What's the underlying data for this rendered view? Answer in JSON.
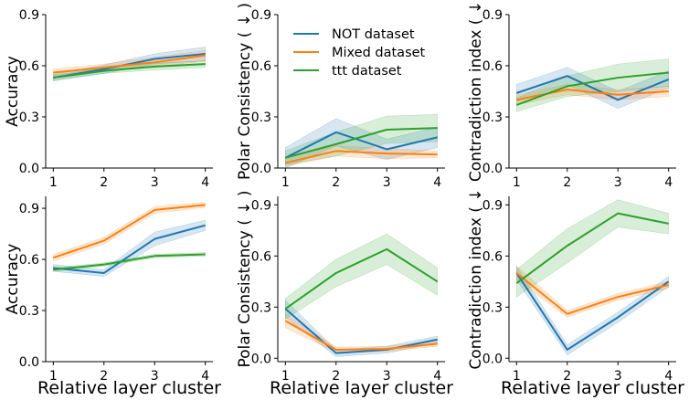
{
  "chart_data": {
    "type": "line",
    "legend": {
      "placement": "top-left of top-middle panel",
      "entries": [
        {
          "name": "NOT dataset",
          "color": "#1f77b4"
        },
        {
          "name": "Mixed dataset",
          "color": "#ff7f0e"
        },
        {
          "name": "ttt dataset",
          "color": "#2ca02c"
        }
      ]
    },
    "panels": [
      {
        "id": "top-accuracy",
        "ylabel": "Accuracy",
        "xlabel": "",
        "x": [
          1,
          2,
          3,
          4
        ],
        "xticks": [
          "1",
          "2",
          "3",
          "4"
        ],
        "ylim": [
          0,
          0.9
        ],
        "yticks": [
          "0.0",
          "0.3",
          "0.6",
          "0.9"
        ],
        "ytick_values": [
          0,
          0.3,
          0.6,
          0.9
        ],
        "series": [
          {
            "name": "NOT dataset",
            "values": [
              0.53,
              0.58,
              0.64,
              0.67
            ],
            "band": [
              0.02,
              0.025,
              0.03,
              0.04
            ]
          },
          {
            "name": "Mixed dataset",
            "values": [
              0.56,
              0.59,
              0.62,
              0.66
            ],
            "band": [
              0.02,
              0.02,
              0.03,
              0.03
            ]
          },
          {
            "name": "ttt dataset",
            "values": [
              0.53,
              0.57,
              0.595,
              0.61
            ],
            "band": [
              0.015,
              0.015,
              0.02,
              0.02
            ]
          }
        ]
      },
      {
        "id": "top-polar",
        "ylabel": "Polar Consistency ( ↓ )",
        "xlabel": "",
        "x": [
          1,
          2,
          3,
          4
        ],
        "xticks": [
          "1",
          "2",
          "3",
          "4"
        ],
        "ylim": [
          0,
          0.9
        ],
        "yticks": [
          "0.0",
          "0.3",
          "0.6",
          "0.9"
        ],
        "ytick_values": [
          0,
          0.3,
          0.6,
          0.9
        ],
        "series": [
          {
            "name": "NOT dataset",
            "values": [
              0.06,
              0.21,
              0.11,
              0.18
            ],
            "band": [
              0.06,
              0.08,
              0.06,
              0.06
            ]
          },
          {
            "name": "Mixed dataset",
            "values": [
              0.03,
              0.1,
              0.085,
              0.08
            ],
            "band": [
              0.02,
              0.03,
              0.03,
              0.02
            ]
          },
          {
            "name": "ttt dataset",
            "values": [
              0.06,
              0.14,
              0.225,
              0.235
            ],
            "band": [
              0.04,
              0.07,
              0.08,
              0.08
            ]
          }
        ]
      },
      {
        "id": "top-contradiction",
        "ylabel": "Contradiction index ( ↓",
        "xlabel": "",
        "x": [
          1,
          2,
          3,
          4
        ],
        "xticks": [
          "1",
          "2",
          "3",
          "4"
        ],
        "ylim": [
          0,
          0.9
        ],
        "yticks": [
          "0.0",
          "0.3",
          "0.6",
          "0.9"
        ],
        "ytick_values": [
          0,
          0.3,
          0.6,
          0.9
        ],
        "series": [
          {
            "name": "NOT dataset",
            "values": [
              0.44,
              0.54,
              0.4,
              0.52
            ],
            "band": [
              0.05,
              0.05,
              0.05,
              0.05
            ]
          },
          {
            "name": "Mixed dataset",
            "values": [
              0.4,
              0.46,
              0.43,
              0.45
            ],
            "band": [
              0.03,
              0.03,
              0.03,
              0.03
            ]
          },
          {
            "name": "ttt dataset",
            "values": [
              0.37,
              0.48,
              0.53,
              0.56
            ],
            "band": [
              0.04,
              0.06,
              0.08,
              0.08
            ]
          }
        ]
      },
      {
        "id": "bottom-accuracy",
        "ylabel": "Accuracy",
        "xlabel": "Relative layer cluster",
        "x": [
          1,
          2,
          3,
          4
        ],
        "xticks": [
          "1",
          "2",
          "3",
          "4"
        ],
        "ylim": [
          0,
          0.97
        ],
        "yticks": [
          "0.0",
          "0.3",
          "0.6",
          "0.9"
        ],
        "ytick_values": [
          0,
          0.3,
          0.6,
          0.9
        ],
        "series": [
          {
            "name": "NOT dataset",
            "values": [
              0.55,
              0.52,
              0.72,
              0.8
            ],
            "band": [
              0.02,
              0.02,
              0.04,
              0.03
            ]
          },
          {
            "name": "Mixed dataset",
            "values": [
              0.61,
              0.71,
              0.89,
              0.92
            ],
            "band": [
              0.02,
              0.02,
              0.02,
              0.015
            ]
          },
          {
            "name": "ttt dataset",
            "values": [
              0.54,
              0.57,
              0.62,
              0.63
            ],
            "band": [
              0.01,
              0.01,
              0.01,
              0.01
            ]
          }
        ]
      },
      {
        "id": "bottom-polar",
        "ylabel": "Polar Consistency ( ↓ )",
        "xlabel": "Relative layer cluster",
        "x": [
          1,
          2,
          3,
          4
        ],
        "xticks": [
          "1",
          "2",
          "3",
          "4"
        ],
        "ylim": [
          -0.02,
          0.95
        ],
        "yticks": [
          "0.0",
          "0.3",
          "0.6",
          "0.9"
        ],
        "ytick_values": [
          0,
          0.3,
          0.6,
          0.9
        ],
        "series": [
          {
            "name": "NOT dataset",
            "values": [
              0.29,
              0.03,
              0.05,
              0.11
            ],
            "band": [
              0.05,
              0.02,
              0.02,
              0.02
            ]
          },
          {
            "name": "Mixed dataset",
            "values": [
              0.22,
              0.05,
              0.055,
              0.085
            ],
            "band": [
              0.04,
              0.015,
              0.015,
              0.015
            ]
          },
          {
            "name": "ttt dataset",
            "values": [
              0.29,
              0.5,
              0.64,
              0.45
            ],
            "band": [
              0.06,
              0.08,
              0.09,
              0.08
            ]
          }
        ]
      },
      {
        "id": "bottom-contradiction",
        "ylabel": "Contradiction index ( ↓",
        "xlabel": "Relative layer cluster",
        "x": [
          1,
          2,
          3,
          4
        ],
        "xticks": [
          "1",
          "2",
          "3",
          "4"
        ],
        "ylim": [
          -0.02,
          0.95
        ],
        "yticks": [
          "0.0",
          "0.3",
          "0.6",
          "0.9"
        ],
        "ytick_values": [
          0,
          0.3,
          0.6,
          0.9
        ],
        "series": [
          {
            "name": "NOT dataset",
            "values": [
              0.5,
              0.05,
              0.24,
              0.45
            ],
            "band": [
              0.04,
              0.03,
              0.03,
              0.03
            ]
          },
          {
            "name": "Mixed dataset",
            "values": [
              0.5,
              0.26,
              0.36,
              0.43
            ],
            "band": [
              0.04,
              0.02,
              0.02,
              0.02
            ]
          },
          {
            "name": "ttt dataset",
            "values": [
              0.44,
              0.66,
              0.85,
              0.79
            ],
            "band": [
              0.08,
              0.1,
              0.08,
              0.06
            ]
          }
        ]
      }
    ]
  }
}
